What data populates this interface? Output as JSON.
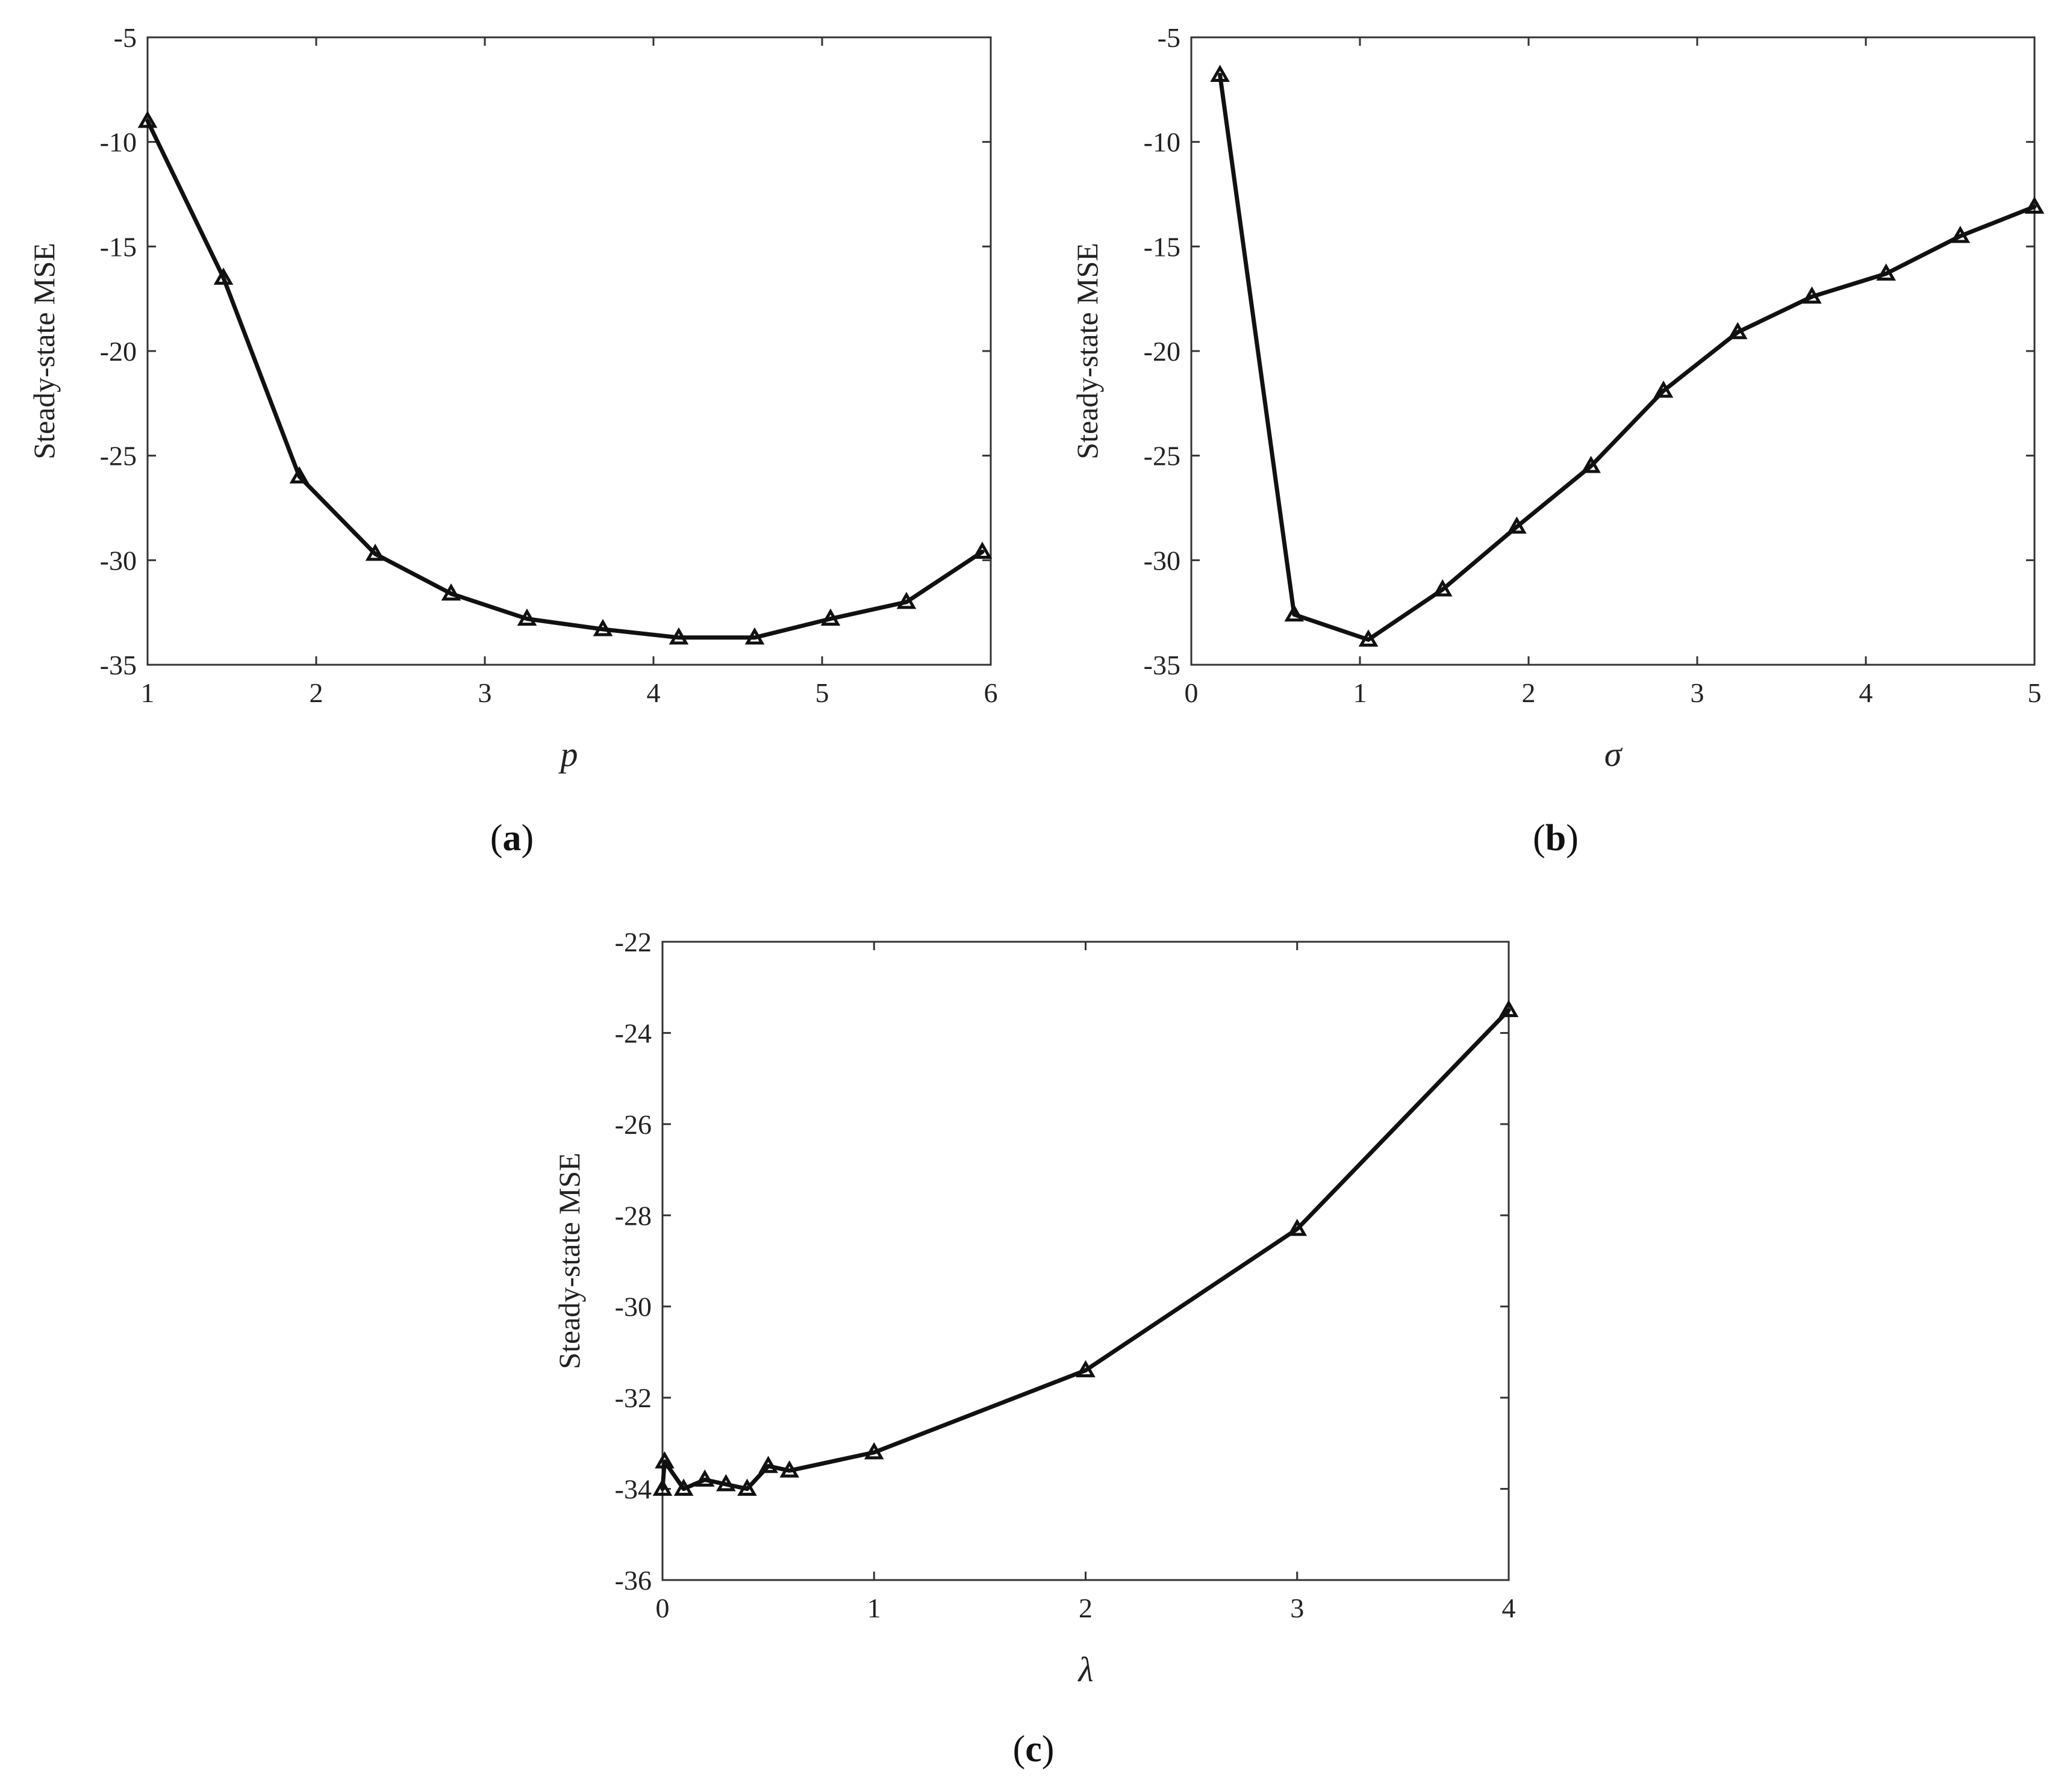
{
  "colors": {
    "line": "#111111",
    "axis": "#333333",
    "background": "#ffffff"
  },
  "marker": "triangle-open",
  "chart_data": [
    {
      "type": "line",
      "caption_letter": "a",
      "xlabel": "p",
      "ylabel": "Steady-state MSE",
      "xlim": [
        1,
        6
      ],
      "ylim": [
        -35,
        -5
      ],
      "xticks": [
        1,
        2,
        3,
        4,
        5,
        6
      ],
      "yticks": [
        -35,
        -30,
        -25,
        -20,
        -15,
        -10,
        -5
      ],
      "grid": false,
      "x": [
        1.0,
        1.45,
        1.9,
        2.35,
        2.8,
        3.25,
        3.7,
        4.15,
        4.6,
        5.05,
        5.5,
        5.95
      ],
      "y": [
        -9.0,
        -16.5,
        -26.0,
        -29.7,
        -31.6,
        -32.8,
        -33.3,
        -33.7,
        -33.7,
        -32.8,
        -32.0,
        -29.6
      ]
    },
    {
      "type": "line",
      "caption_letter": "b",
      "xlabel": "σ",
      "ylabel": "Steady-state MSE",
      "xlim": [
        0,
        5
      ],
      "ylim": [
        -35,
        -5
      ],
      "xticks": [
        0,
        1,
        2,
        3,
        4,
        5
      ],
      "yticks": [
        -35,
        -30,
        -25,
        -20,
        -15,
        -10,
        -5
      ],
      "grid": false,
      "x": [
        0.17,
        0.61,
        1.05,
        1.49,
        1.93,
        2.37,
        2.8,
        3.24,
        3.68,
        4.12,
        4.56,
        5.0
      ],
      "y": [
        -6.8,
        -32.6,
        -33.8,
        -31.4,
        -28.4,
        -25.5,
        -21.9,
        -19.1,
        -17.4,
        -16.3,
        -14.5,
        -13.1
      ]
    },
    {
      "type": "line",
      "caption_letter": "c",
      "xlabel": "λ",
      "ylabel": "Steady-state MSE",
      "xlim": [
        0,
        4
      ],
      "ylim": [
        -36,
        -22
      ],
      "xticks": [
        0,
        1,
        2,
        3,
        4
      ],
      "yticks": [
        -36,
        -34,
        -32,
        -30,
        -28,
        -26,
        -24,
        -22
      ],
      "grid": false,
      "x": [
        0.0,
        0.01,
        0.1,
        0.2,
        0.3,
        0.4,
        0.5,
        0.6,
        1.0,
        2.0,
        3.0,
        4.0
      ],
      "y": [
        -34.0,
        -33.4,
        -34.0,
        -33.8,
        -33.9,
        -34.0,
        -33.5,
        -33.6,
        -33.2,
        -31.4,
        -28.3,
        -23.5
      ]
    }
  ]
}
